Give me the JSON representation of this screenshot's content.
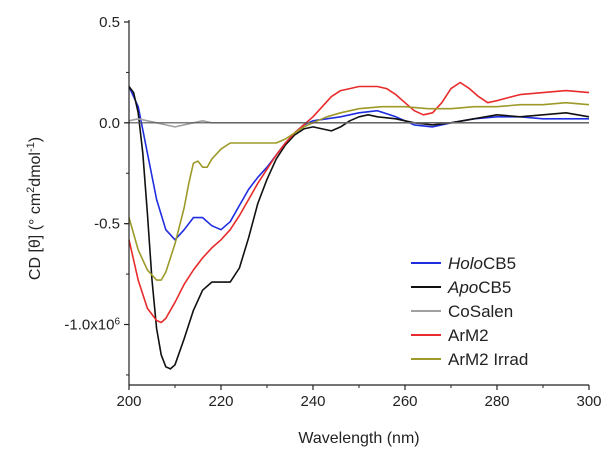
{
  "chart_data": {
    "type": "line",
    "xlabel": "Wavelength (nm)",
    "ylabel": {
      "prefix": "CD [θ] (° cm",
      "sup1": "2",
      "mid": "dmol",
      "sup2": "-1",
      "suffix": ")"
    },
    "xlim": [
      200,
      300
    ],
    "ylim": [
      -1.3,
      0.5
    ],
    "x_ticks": [
      {
        "value": 200,
        "label": "200"
      },
      {
        "value": 220,
        "label": "220"
      },
      {
        "value": 240,
        "label": "240"
      },
      {
        "value": 260,
        "label": "260"
      },
      {
        "value": 280,
        "label": "280"
      },
      {
        "value": 300,
        "label": "300"
      }
    ],
    "y_ticks": [
      {
        "value": 0.5,
        "label": "0.5"
      },
      {
        "value": 0.0,
        "label": "0.0"
      },
      {
        "value": -0.5,
        "label": "-0.5"
      },
      {
        "value": -1.0,
        "label": "-1.0x10",
        "sup": "6"
      }
    ],
    "legend_position": "bottom-right",
    "series": [
      {
        "name": "HoloCB5",
        "name_italic": "Holo",
        "name_rest": "CB5",
        "color": "#1f2de0",
        "x": [
          200,
          202,
          204,
          206,
          208,
          210,
          212,
          214,
          216,
          218,
          220,
          222,
          224,
          226,
          228,
          230,
          232,
          234,
          236,
          238,
          240,
          243,
          246,
          250,
          254,
          258,
          262,
          266,
          270,
          275,
          280,
          285,
          290,
          295,
          300
        ],
        "y": [
          0.18,
          0.08,
          -0.15,
          -0.38,
          -0.53,
          -0.58,
          -0.53,
          -0.47,
          -0.47,
          -0.51,
          -0.53,
          -0.49,
          -0.41,
          -0.33,
          -0.27,
          -0.22,
          -0.16,
          -0.1,
          -0.05,
          -0.01,
          0.01,
          0.02,
          0.03,
          0.05,
          0.06,
          0.03,
          -0.01,
          -0.02,
          0.0,
          0.02,
          0.03,
          0.03,
          0.02,
          0.02,
          0.02
        ]
      },
      {
        "name": "ApoCB5",
        "name_italic": "Apo",
        "name_rest": "CB5",
        "color": "#111111",
        "x": [
          200,
          201,
          202,
          203,
          204,
          205,
          206,
          207,
          208,
          209,
          210,
          212,
          214,
          216,
          218,
          220,
          222,
          224,
          226,
          228,
          230,
          232,
          234,
          236,
          238,
          240,
          242,
          244,
          246,
          248,
          250,
          252,
          254,
          258,
          262,
          266,
          270,
          275,
          280,
          285,
          290,
          295,
          300
        ],
        "y": [
          0.18,
          0.15,
          0.05,
          -0.15,
          -0.45,
          -0.78,
          -1.02,
          -1.15,
          -1.21,
          -1.22,
          -1.2,
          -1.07,
          -0.93,
          -0.83,
          -0.79,
          -0.79,
          -0.79,
          -0.72,
          -0.57,
          -0.4,
          -0.28,
          -0.18,
          -0.11,
          -0.06,
          -0.03,
          -0.02,
          -0.03,
          -0.04,
          -0.02,
          0.01,
          0.03,
          0.04,
          0.03,
          0.02,
          0.0,
          -0.01,
          0.0,
          0.02,
          0.04,
          0.03,
          0.04,
          0.05,
          0.03
        ]
      },
      {
        "name": "CoSalen",
        "name_italic": "",
        "name_rest": "CoSalen",
        "color": "#a0a0a0",
        "x": [
          200,
          202,
          204,
          206,
          208,
          210,
          212,
          214,
          216,
          218,
          220,
          225,
          230,
          240,
          250,
          260,
          270,
          280,
          290,
          300
        ],
        "y": [
          0.01,
          0.02,
          0.01,
          0.0,
          -0.01,
          -0.02,
          -0.01,
          0.0,
          0.01,
          0.0,
          0.0,
          0.0,
          0.0,
          0.0,
          0.0,
          0.0,
          0.0,
          0.0,
          0.0,
          0.0
        ]
      },
      {
        "name": "ArM2",
        "name_italic": "",
        "name_rest": "ArM2",
        "color": "#e82b2b",
        "x": [
          200,
          202,
          204,
          206,
          207,
          208,
          210,
          212,
          214,
          216,
          218,
          220,
          222,
          224,
          226,
          228,
          230,
          232,
          234,
          236,
          238,
          240,
          242,
          244,
          246,
          248,
          250,
          252,
          254,
          256,
          258,
          260,
          262,
          264,
          266,
          268,
          270,
          272,
          274,
          276,
          278,
          280,
          285,
          290,
          295,
          300
        ],
        "y": [
          -0.58,
          -0.78,
          -0.92,
          -0.98,
          -0.99,
          -0.97,
          -0.89,
          -0.8,
          -0.73,
          -0.67,
          -0.62,
          -0.58,
          -0.53,
          -0.46,
          -0.38,
          -0.3,
          -0.23,
          -0.16,
          -0.1,
          -0.05,
          -0.01,
          0.03,
          0.08,
          0.13,
          0.16,
          0.17,
          0.18,
          0.18,
          0.18,
          0.17,
          0.14,
          0.1,
          0.06,
          0.04,
          0.05,
          0.1,
          0.17,
          0.2,
          0.17,
          0.13,
          0.1,
          0.11,
          0.14,
          0.15,
          0.16,
          0.15
        ]
      },
      {
        "name": "ArM2 Irrad",
        "name_italic": "",
        "name_rest": "ArM2 Irrad",
        "color": "#9e9a2a",
        "x": [
          200,
          202,
          204,
          206,
          207,
          208,
          210,
          212,
          213,
          214,
          215,
          216,
          217,
          218,
          220,
          222,
          224,
          226,
          228,
          230,
          232,
          234,
          236,
          238,
          240,
          243,
          246,
          250,
          255,
          260,
          265,
          270,
          275,
          280,
          285,
          290,
          295,
          300
        ],
        "y": [
          -0.47,
          -0.63,
          -0.73,
          -0.78,
          -0.78,
          -0.74,
          -0.6,
          -0.42,
          -0.3,
          -0.2,
          -0.19,
          -0.22,
          -0.22,
          -0.18,
          -0.13,
          -0.1,
          -0.1,
          -0.1,
          -0.1,
          -0.1,
          -0.1,
          -0.08,
          -0.05,
          -0.02,
          0.0,
          0.03,
          0.05,
          0.07,
          0.08,
          0.08,
          0.07,
          0.07,
          0.08,
          0.08,
          0.09,
          0.09,
          0.1,
          0.09
        ]
      }
    ]
  }
}
